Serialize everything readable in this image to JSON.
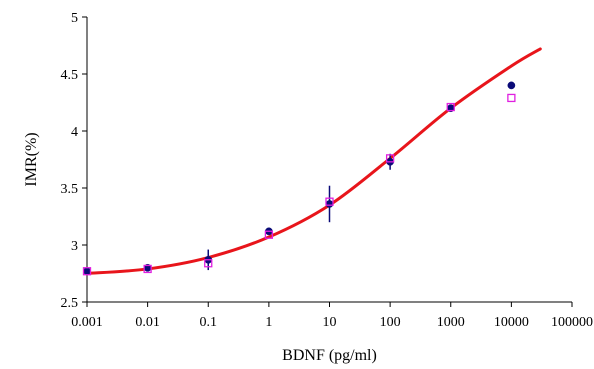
{
  "chart_data": {
    "type": "scatter",
    "title": "",
    "xlabel": "BDNF (pg/ml)",
    "ylabel": "IMR(%)",
    "x_scale": "log",
    "xlim": [
      0.001,
      100000
    ],
    "ylim": [
      2.5,
      5
    ],
    "x_ticks": [
      "0.001",
      "0.01",
      "0.1",
      "1",
      "10",
      "100",
      "1000",
      "10000",
      "100000"
    ],
    "y_ticks": [
      "2.5",
      "3",
      "3.5",
      "4",
      "4.5",
      "5"
    ],
    "grid": false,
    "legend": "none",
    "series": [
      {
        "marker": "filled-circle",
        "color": "#0a0a78",
        "x": [
          0.001,
          0.01,
          0.1,
          1,
          10,
          100,
          1000,
          10000
        ],
        "y": [
          2.77,
          2.8,
          2.87,
          3.12,
          3.36,
          3.73,
          4.2,
          4.4
        ],
        "error": [
          0.02,
          0.02,
          0.09,
          0.02,
          0.16,
          0.07,
          0.02,
          0
        ]
      },
      {
        "marker": "open-square",
        "color": "#e020e0",
        "x": [
          0.001,
          0.01,
          0.1,
          1,
          10,
          100,
          1000,
          10000
        ],
        "y": [
          2.77,
          2.79,
          2.84,
          3.09,
          3.38,
          3.76,
          4.21,
          4.29
        ]
      },
      {
        "type": "line",
        "color": "#e8151b",
        "x": [
          0.001,
          0.01,
          0.1,
          1,
          10,
          100,
          1000,
          10000,
          30000
        ],
        "y": [
          2.75,
          2.79,
          2.89,
          3.07,
          3.35,
          3.76,
          4.2,
          4.57,
          4.72
        ]
      }
    ]
  }
}
